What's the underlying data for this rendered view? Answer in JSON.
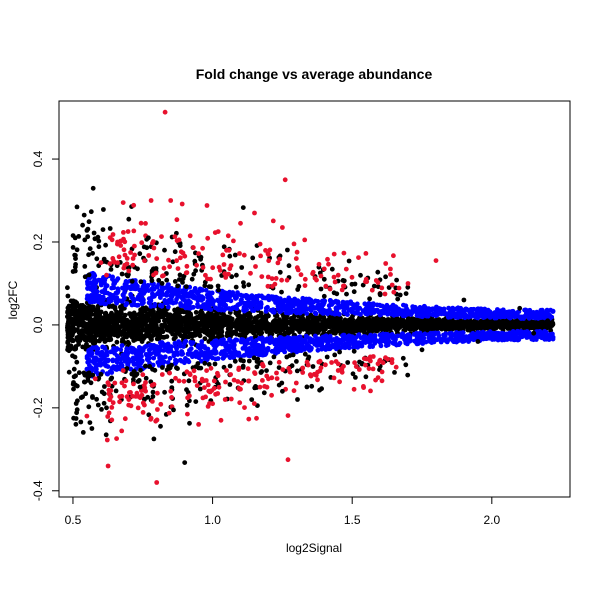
{
  "chart_data": {
    "type": "scatter",
    "title": "Fold change vs average abundance",
    "xlabel": "log2Signal",
    "ylabel": "log2FC",
    "xlim": [
      0.45,
      2.28
    ],
    "ylim": [
      -0.415,
      0.54
    ],
    "x_ticks": [
      0.5,
      1.0,
      1.5,
      2.0
    ],
    "x_tick_labels": [
      "0.5",
      "1.0",
      "1.5",
      "2.0"
    ],
    "y_ticks": [
      -0.4,
      -0.2,
      0.0,
      0.2,
      0.4
    ],
    "y_tick_labels": [
      "-0.4",
      "-0.2",
      "0.0",
      "0.2",
      "0.4"
    ],
    "grid": false,
    "legend": "none",
    "colors": {
      "not_significant": "#000000",
      "significant_red": "#e8112d",
      "significant_blue": "#0000ff"
    },
    "series": [
      {
        "color": "#e8112d",
        "points": [
          [
            0.83,
            0.513
          ],
          [
            0.68,
            0.295
          ],
          [
            0.85,
            0.3
          ],
          [
            0.98,
            0.288
          ],
          [
            1.26,
            0.35
          ],
          [
            0.78,
            0.3
          ],
          [
            1.02,
            0.225
          ],
          [
            1.15,
            0.27
          ],
          [
            0.92,
            0.215
          ],
          [
            0.76,
            0.215
          ],
          [
            0.66,
            0.2
          ],
          [
            1.33,
            0.205
          ],
          [
            1.1,
            0.245
          ],
          [
            1.25,
            0.235
          ],
          [
            0.88,
            0.205
          ],
          [
            1.62,
            0.148
          ],
          [
            1.8,
            0.155
          ],
          [
            0.6,
            0.15
          ],
          [
            1.4,
            0.135
          ],
          [
            0.95,
            0.172
          ],
          [
            0.72,
            0.19
          ],
          [
            1.05,
            0.18
          ],
          [
            1.2,
            0.17
          ],
          [
            1.3,
            0.16
          ],
          [
            0.8,
            0.16
          ],
          [
            1.55,
            0.11
          ],
          [
            1.7,
            0.1
          ],
          [
            1.45,
            0.12
          ],
          [
            0.62,
            0.12
          ],
          [
            0.7,
            0.13
          ],
          [
            0.55,
            -0.22
          ],
          [
            0.7,
            -0.18
          ],
          [
            0.78,
            -0.225
          ],
          [
            0.8,
            -0.38
          ],
          [
            0.91,
            -0.215
          ],
          [
            0.95,
            -0.24
          ],
          [
            1.0,
            -0.19
          ],
          [
            1.03,
            -0.23
          ],
          [
            1.1,
            -0.155
          ],
          [
            1.17,
            -0.15
          ],
          [
            1.27,
            -0.325
          ],
          [
            1.2,
            -0.13
          ],
          [
            1.35,
            -0.12
          ],
          [
            1.45,
            -0.11
          ],
          [
            1.6,
            -0.085
          ],
          [
            0.58,
            -0.13
          ],
          [
            0.65,
            -0.14
          ],
          [
            0.85,
            -0.16
          ],
          [
            0.88,
            -0.135
          ],
          [
            1.3,
            -0.14
          ],
          [
            0.75,
            -0.12
          ],
          [
            0.92,
            -0.12
          ],
          [
            1.05,
            -0.11
          ],
          [
            1.15,
            -0.115
          ],
          [
            0.68,
            -0.11
          ]
        ]
      },
      {
        "color": "#000000",
        "points": [
          [
            0.7,
            0.255
          ],
          [
            0.77,
            0.21
          ],
          [
            1.11,
            0.283
          ],
          [
            0.9,
            -0.332
          ],
          [
            0.79,
            -0.275
          ],
          [
            0.57,
            -0.175
          ],
          [
            0.62,
            -0.2
          ],
          [
            0.74,
            -0.15
          ],
          [
            0.86,
            -0.205
          ],
          [
            0.94,
            -0.185
          ],
          [
            1.14,
            -0.18
          ],
          [
            1.25,
            -0.16
          ],
          [
            1.4,
            0.11
          ],
          [
            1.6,
            0.075
          ],
          [
            1.9,
            0.06
          ],
          [
            2.1,
            0.04
          ],
          [
            2.2,
            0.01
          ],
          [
            2.15,
            -0.02
          ],
          [
            1.95,
            -0.04
          ],
          [
            1.75,
            -0.06
          ]
        ]
      }
    ]
  }
}
